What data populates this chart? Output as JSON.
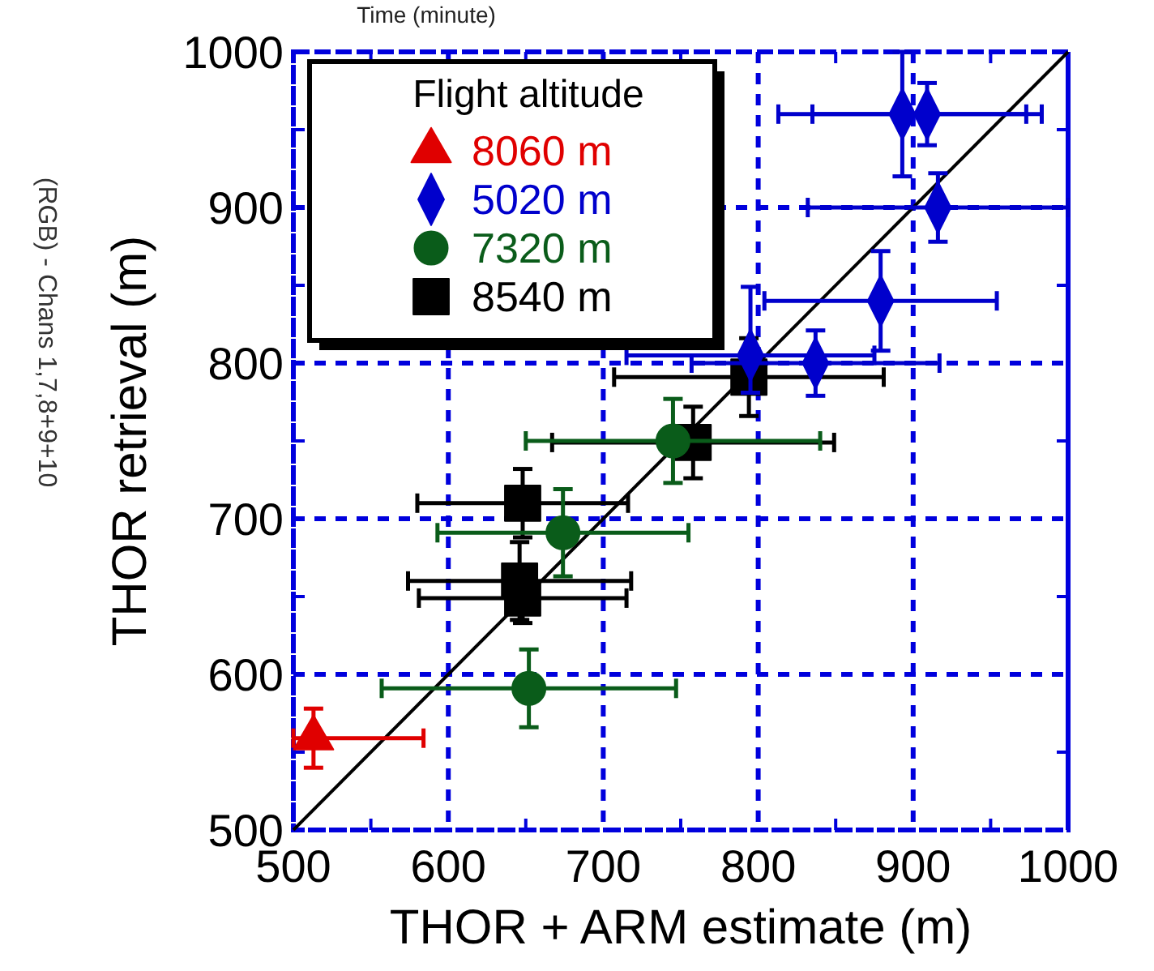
{
  "chart_data": {
    "type": "scatter",
    "xlabel": "THOR + ARM estimate (m)",
    "ylabel": "THOR retrieval (m)",
    "legend_title": "Flight altitude",
    "annotations": [
      "Time (minute)",
      "(RGB) - Chans 1,7,8+9+10"
    ],
    "xlim": [
      500,
      1000
    ],
    "ylim": [
      500,
      1000
    ],
    "xticks": [
      500,
      600,
      700,
      800,
      900,
      1000
    ],
    "yticks": [
      500,
      600,
      700,
      800,
      900,
      1000
    ],
    "grid": true,
    "legend": "top left",
    "series": [
      {
        "name": "8060 m",
        "color": "#e00000",
        "marker": "triangle",
        "x": [
          513
        ],
        "values": [
          559
        ],
        "errors": [
          19
        ],
        "xerrors": [
          [
            500,
            584
          ]
        ]
      },
      {
        "name": "5020 m",
        "color": "#0000cc",
        "marker": "diamond",
        "x": [
          893,
          909,
          916,
          879,
          837,
          795
        ],
        "values": [
          960,
          960,
          900,
          840,
          800,
          805
        ],
        "errors": [
          40,
          20,
          22,
          32,
          21,
          [
            781,
            849
          ]
        ],
        "xerrors": [
          80,
          74,
          84,
          75,
          80,
          80
        ]
      },
      {
        "name": "7320 m",
        "color": "#0a5c1a",
        "marker": "circle",
        "x": [
          652,
          674,
          745
        ],
        "values": [
          591,
          691,
          750
        ],
        "errors": [
          25,
          28,
          27
        ],
        "xerrors": [
          95,
          81,
          95
        ]
      },
      {
        "name": "8540 m",
        "color": "#000000",
        "marker": "square",
        "x": [
          794,
          758,
          648,
          646,
          648
        ],
        "values": [
          791,
          749,
          710,
          660,
          649
        ],
        "errors": [
          25,
          23,
          22,
          25,
          16
        ],
        "xerrors": [
          87,
          91,
          68,
          72,
          67
        ]
      },
      {
        "type": "line",
        "color": "#000000",
        "marker": "none",
        "x": [
          500,
          1000
        ],
        "values": [
          500,
          1000
        ]
      }
    ]
  }
}
